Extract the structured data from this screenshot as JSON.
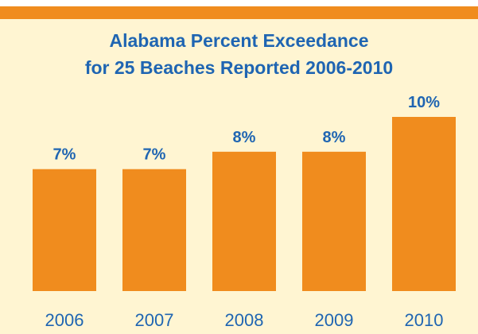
{
  "chart_data": {
    "type": "bar",
    "title_line1": "Alabama Percent Exceedance",
    "title_line2": "for 25 Beaches Reported 2006-2010",
    "xlabel": "",
    "ylabel": "",
    "categories": [
      "2006",
      "2007",
      "2008",
      "2009",
      "2010"
    ],
    "values": [
      7,
      7,
      8,
      8,
      10
    ],
    "data_labels": [
      "7%",
      "7%",
      "8%",
      "8%",
      "10%"
    ],
    "ylim": [
      0,
      10
    ],
    "grid": false,
    "legend": "none"
  },
  "colors": {
    "background": "#fff5d2",
    "bar": "#f08c1e",
    "text": "#1f65b2",
    "accent": "#f08c1e"
  }
}
